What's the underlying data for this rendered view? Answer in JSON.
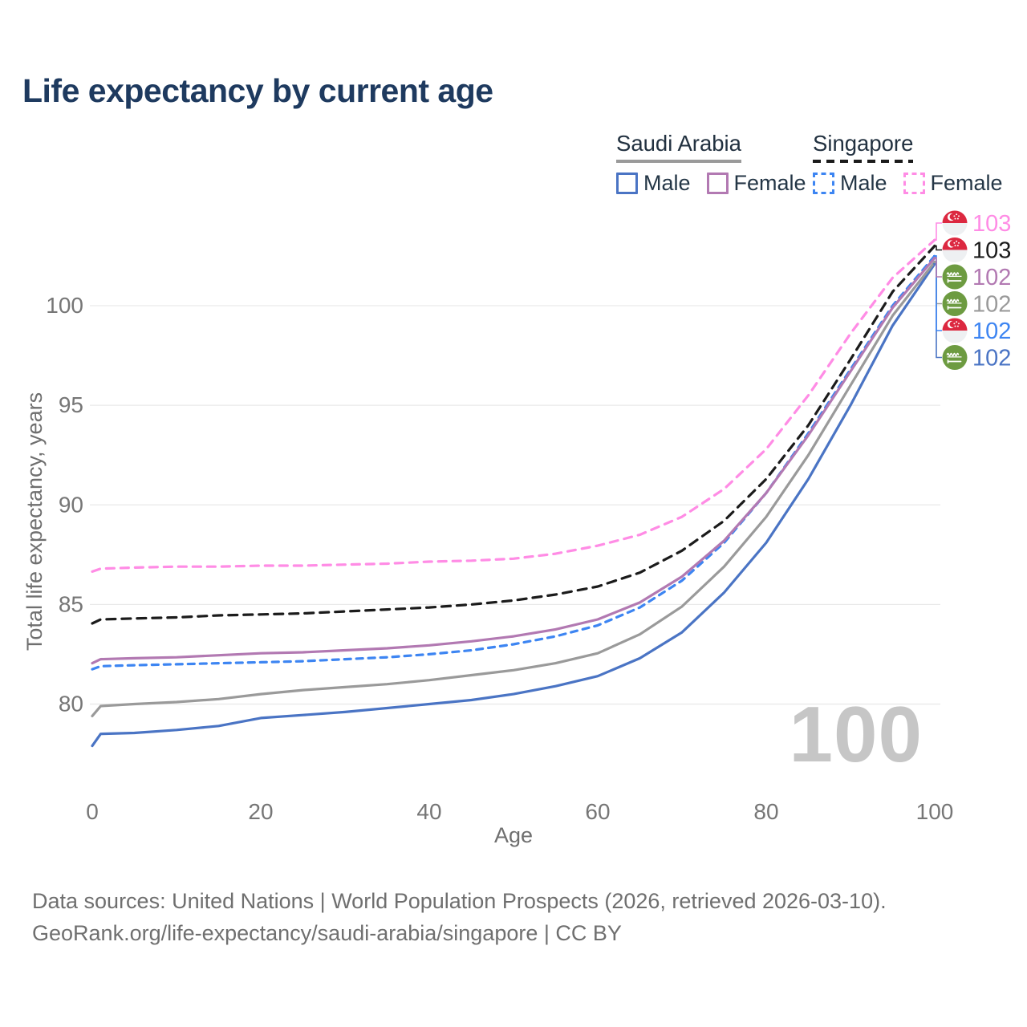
{
  "title": "Life expectancy by current age",
  "watermark": "100",
  "footer": {
    "line1": "Data sources: United Nations | World Population Prospects (2026, retrieved 2026-03-10).",
    "line2": "GeoRank.org/life-expectancy/saudi-arabia/singapore | CC BY"
  },
  "legend": {
    "groups": [
      {
        "label": "Saudi Arabia",
        "underline_color": "#9a9a9a",
        "underline_style": "solid",
        "items": [
          {
            "label": "Male",
            "color": "#4a74c4",
            "style": "solid"
          },
          {
            "label": "Female",
            "color": "#b279b2",
            "style": "solid"
          }
        ]
      },
      {
        "label": "Singapore",
        "underline_color": "#1b1b1b",
        "underline_style": "dashed",
        "items": [
          {
            "label": "Male",
            "color": "#3d85f2",
            "style": "dashed"
          },
          {
            "label": "Female",
            "color": "#ff8ce5",
            "style": "dashed"
          }
        ]
      }
    ]
  },
  "chart_data": {
    "type": "line",
    "title": "Life expectancy by current age",
    "xlabel": "Age",
    "ylabel": "Total life expectancy, years",
    "xlim": [
      0,
      100
    ],
    "ylim": [
      76.5,
      104.5
    ],
    "x_ticks": [
      0,
      20,
      40,
      60,
      80,
      100
    ],
    "y_ticks": [
      80,
      85,
      90,
      95,
      100
    ],
    "grid": "horizontal",
    "legend_position": "top-right",
    "colors": {
      "grid": "#e9e9e9",
      "tick_text": "#767676",
      "axis_title": "#6f6f6f",
      "singapore_flag_red": "#dc2840",
      "singapore_flag_white": "#eef0f2",
      "saudi_flag_green": "#6d9b41"
    },
    "x": [
      0,
      1,
      5,
      10,
      15,
      20,
      25,
      30,
      35,
      40,
      45,
      50,
      55,
      60,
      65,
      70,
      75,
      80,
      85,
      90,
      95,
      100
    ],
    "series": [
      {
        "name": "Saudi Arabia — Male",
        "country": "Saudi Arabia",
        "sex": "male",
        "color": "#4a74c4",
        "dash": "solid",
        "flag": "saudi-arabia",
        "end_label": "102",
        "label_row": 5,
        "values": [
          77.9,
          78.5,
          78.55,
          78.7,
          78.9,
          79.3,
          79.45,
          79.6,
          79.8,
          80.0,
          80.2,
          80.5,
          80.9,
          81.4,
          82.3,
          83.6,
          85.6,
          88.1,
          91.3,
          95.0,
          99.0,
          102.1
        ]
      },
      {
        "name": "Saudi Arabia — Total",
        "country": "Saudi Arabia",
        "sex": "total",
        "color": "#9a9a9a",
        "dash": "solid",
        "flag": "saudi-arabia",
        "end_label": "102",
        "label_row": 3,
        "values": [
          79.4,
          79.9,
          80.0,
          80.1,
          80.25,
          80.5,
          80.7,
          80.85,
          81.0,
          81.2,
          81.45,
          81.7,
          82.05,
          82.55,
          83.5,
          84.9,
          86.9,
          89.4,
          92.5,
          96.0,
          99.5,
          102.2
        ]
      },
      {
        "name": "Singapore — Male",
        "country": "Singapore",
        "sex": "male",
        "color": "#3d85f2",
        "dash": "dashed",
        "flag": "singapore",
        "end_label": "102",
        "label_row": 4,
        "values": [
          81.75,
          81.9,
          81.95,
          82.0,
          82.05,
          82.1,
          82.15,
          82.25,
          82.35,
          82.5,
          82.7,
          83.0,
          83.4,
          83.95,
          84.85,
          86.2,
          88.1,
          90.6,
          93.6,
          96.8,
          100.0,
          102.5
        ]
      },
      {
        "name": "Saudi Arabia — Female",
        "country": "Saudi Arabia",
        "sex": "female",
        "color": "#b279b2",
        "dash": "solid",
        "flag": "saudi-arabia",
        "end_label": "102",
        "label_row": 2,
        "values": [
          82.05,
          82.25,
          82.3,
          82.35,
          82.45,
          82.55,
          82.6,
          82.7,
          82.8,
          82.95,
          83.15,
          83.4,
          83.75,
          84.25,
          85.1,
          86.4,
          88.2,
          90.6,
          93.5,
          96.7,
          99.9,
          102.4
        ]
      },
      {
        "name": "Singapore — Total",
        "country": "Singapore",
        "sex": "total",
        "color": "#1b1b1b",
        "dash": "dashed",
        "flag": "singapore",
        "end_label": "103",
        "label_row": 1,
        "values": [
          84.05,
          84.25,
          84.3,
          84.35,
          84.45,
          84.5,
          84.55,
          84.65,
          84.75,
          84.85,
          85.0,
          85.2,
          85.5,
          85.9,
          86.6,
          87.7,
          89.2,
          91.3,
          94.0,
          97.3,
          100.7,
          103.0
        ]
      },
      {
        "name": "Singapore — Female",
        "country": "Singapore",
        "sex": "female",
        "color": "#ff8ce5",
        "dash": "dashed",
        "flag": "singapore",
        "end_label": "103",
        "label_row": 0,
        "values": [
          86.65,
          86.8,
          86.85,
          86.9,
          86.9,
          86.95,
          86.95,
          87.0,
          87.05,
          87.15,
          87.2,
          87.3,
          87.55,
          87.95,
          88.5,
          89.4,
          90.8,
          92.8,
          95.5,
          98.6,
          101.4,
          103.3
        ]
      }
    ]
  }
}
